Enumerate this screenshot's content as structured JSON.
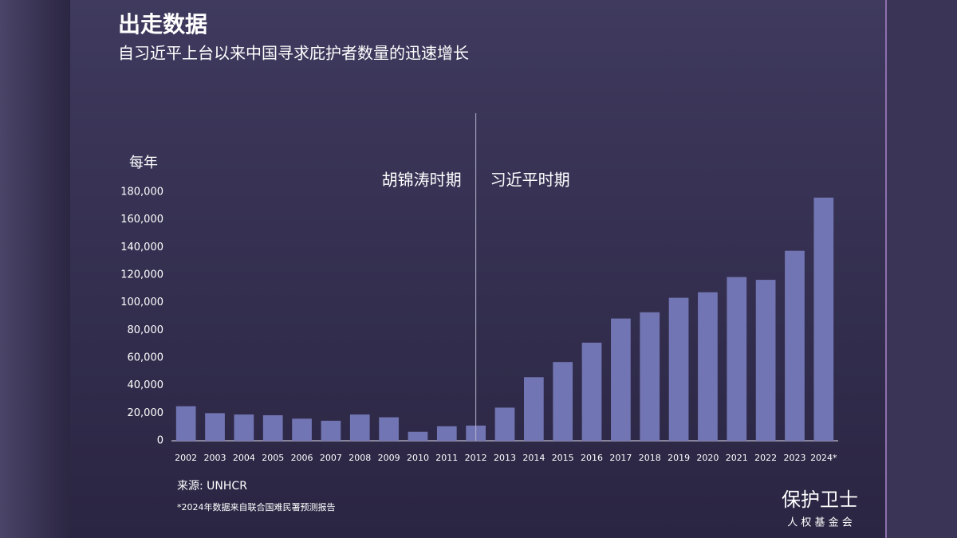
{
  "chart_data": {
    "type": "bar",
    "title": "出走数据",
    "subtitle": "自习近平上台以来中国寻求庇护者数量的迅速增长",
    "y_label": "每年",
    "annotations": [
      "胡锦涛时期",
      "习近平时期"
    ],
    "categories": [
      "2002",
      "2003",
      "2004",
      "2005",
      "2006",
      "2007",
      "2008",
      "2009",
      "2010",
      "2011",
      "2012",
      "2013",
      "2014",
      "2015",
      "2016",
      "2017",
      "2018",
      "2019",
      "2020",
      "2021",
      "2022",
      "2023",
      "2024*"
    ],
    "values": [
      25000,
      20000,
      19000,
      18500,
      16000,
      14500,
      19000,
      17000,
      6500,
      10500,
      11000,
      24000,
      46000,
      57000,
      71000,
      88500,
      93000,
      103500,
      107500,
      118500,
      116500,
      137500,
      176000
    ],
    "color": "#7275b3",
    "ylim": [
      0,
      180000
    ],
    "yticks": [
      0,
      {
        "value": 20000,
        "label": "20,000"
      },
      {
        "value": 40000,
        "label": "40,000"
      },
      {
        "value": 60000,
        "label": "60,000"
      },
      {
        "value": 80000,
        "label": "80,000"
      },
      {
        "value": 100000,
        "label": "100,000"
      },
      {
        "value": 120000,
        "label": "120,000"
      },
      {
        "value": 140000,
        "label": "140,000"
      },
      {
        "value": 160000,
        "label": "160,000"
      },
      {
        "value": 180000,
        "label": "180,000"
      }
    ],
    "source": "来源: UNHCR",
    "footnote": "*2024年数据来自联合国难民署预测报告"
  },
  "brand": {
    "name": "保护卫士",
    "tagline": "人 权 基 金 会"
  }
}
